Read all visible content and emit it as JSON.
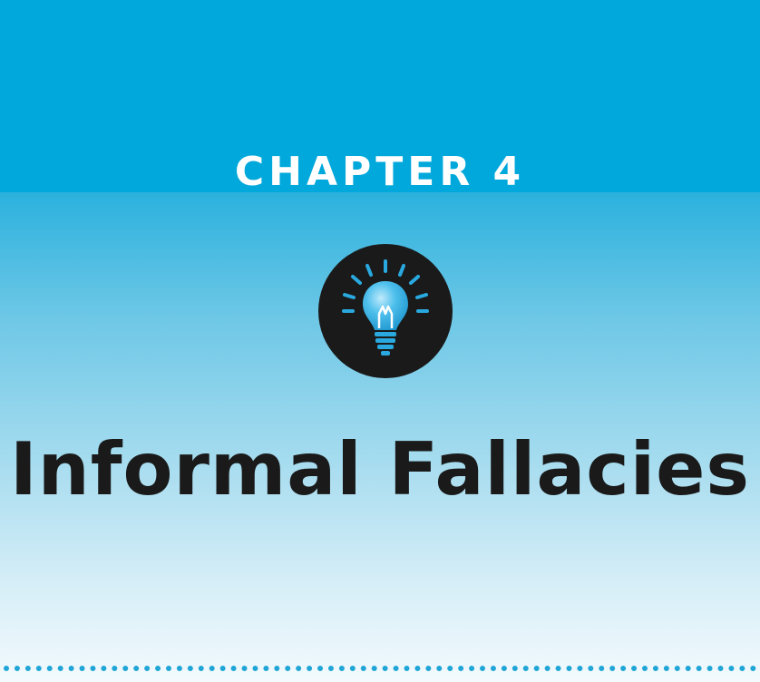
{
  "chapter": {
    "label": "CHAPTER 4",
    "title": "Informal Fallacies"
  },
  "icon": {
    "name": "lightbulb-icon",
    "badge_color": "#1a1a1a",
    "bulb_color": "#29a9df"
  },
  "colors": {
    "header_blue": "#00a8db",
    "rule_blue": "#1fa6d6",
    "title_text": "#1a1a1a",
    "label_text": "#ffffff"
  }
}
